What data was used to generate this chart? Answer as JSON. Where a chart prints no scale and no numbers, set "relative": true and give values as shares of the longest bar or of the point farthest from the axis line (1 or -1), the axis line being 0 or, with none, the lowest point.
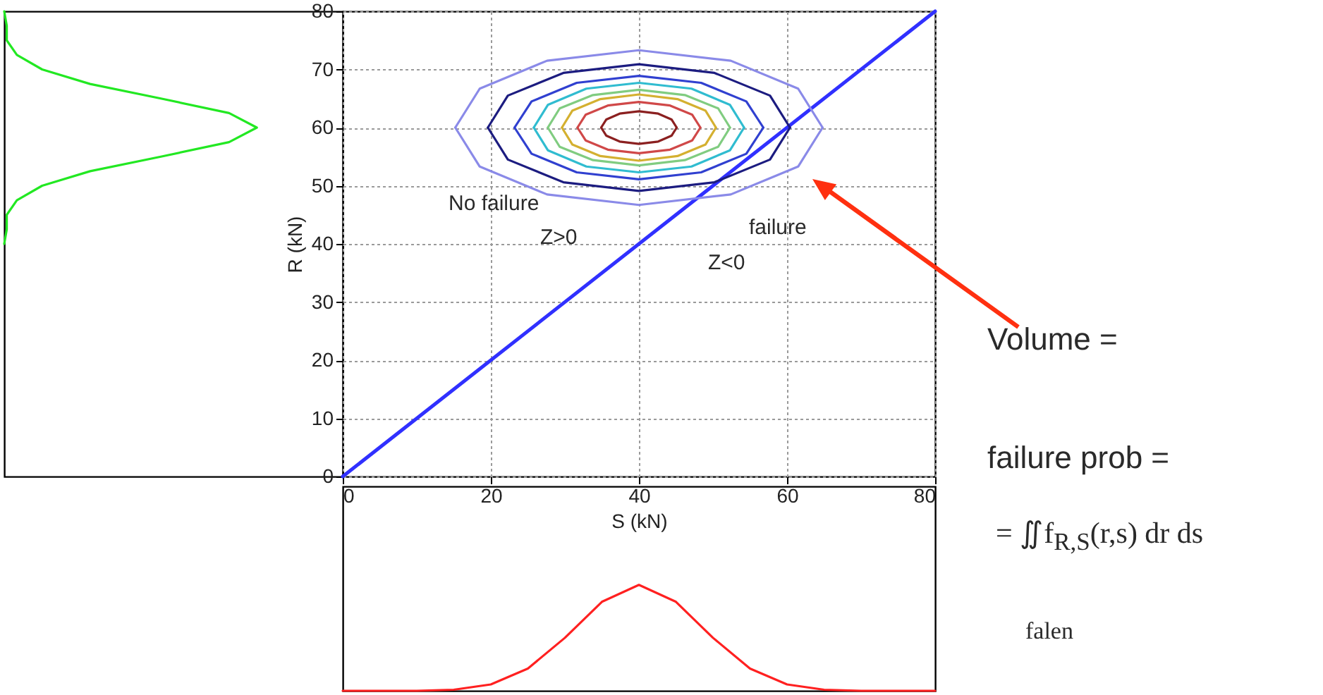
{
  "chart_data": [
    {
      "type": "line",
      "orientation": "horizontal",
      "relative": true,
      "ylim": [
        0,
        80
      ],
      "tick_labels": false,
      "color": "#22e822",
      "x": [
        40,
        42.5,
        45,
        47.5,
        50,
        52.5,
        55,
        57.5,
        60,
        62.5,
        65,
        67.5,
        70,
        72.5,
        75,
        77.5,
        80
      ],
      "values": [
        0,
        0.01,
        0.01,
        0.05,
        0.15,
        0.34,
        0.62,
        0.89,
        1,
        0.89,
        0.62,
        0.34,
        0.15,
        0.05,
        0.01,
        0.01,
        0
      ]
    },
    {
      "type": "line",
      "xlim": [
        0,
        80
      ],
      "ylim": [
        0,
        80
      ],
      "xticks": [
        0,
        20,
        40,
        60,
        80
      ],
      "yticks": [
        0,
        10,
        20,
        30,
        40,
        50,
        60,
        70,
        80
      ],
      "xlabel": "S (kN)",
      "ylabel": "R (kN)",
      "grid": true,
      "series": [
        {
          "color": "#3030ff",
          "x": [
            0,
            80
          ],
          "values": [
            0,
            80
          ]
        },
        {
          "color": "#8a8ae8",
          "x": [
            15.2,
            18.5,
            27.6,
            40,
            52.4,
            61.5,
            64.8
          ],
          "values": [
            60,
            66.7,
            71.5,
            73.3,
            71.5,
            66.7,
            60
          ]
        },
        {
          "color": "#8a8ae8",
          "x": [
            15.2,
            18.5,
            27.6,
            40,
            52.4,
            61.5,
            64.8
          ],
          "values": [
            60,
            53.3,
            48.5,
            46.7,
            48.5,
            53.3,
            60
          ]
        },
        {
          "color": "#1c1c80",
          "x": [
            19.6,
            22.3,
            29.8,
            40,
            50.2,
            57.7,
            60.4
          ],
          "values": [
            60,
            65.5,
            69.4,
            70.9,
            69.4,
            65.5,
            60
          ]
        },
        {
          "color": "#1c1c80",
          "x": [
            19.6,
            22.3,
            29.8,
            40,
            50.2,
            57.7,
            60.4
          ],
          "values": [
            60,
            54.5,
            50.6,
            49.1,
            50.6,
            54.5,
            60
          ]
        },
        {
          "color": "#3040d0",
          "x": [
            23.2,
            25.5,
            31.6,
            40,
            48.4,
            54.5,
            56.8
          ],
          "values": [
            60,
            64.5,
            67.7,
            68.9,
            67.7,
            64.5,
            60
          ]
        },
        {
          "color": "#3040d0",
          "x": [
            23.2,
            25.5,
            31.6,
            40,
            48.4,
            54.5,
            56.8
          ],
          "values": [
            60,
            55.5,
            52.3,
            51.1,
            52.3,
            55.5,
            60
          ]
        },
        {
          "color": "#30bcd0",
          "x": [
            25.8,
            27.7,
            32.9,
            40,
            47.1,
            52.3,
            54.2
          ],
          "values": [
            60,
            63.9,
            66.7,
            67.7,
            66.7,
            63.9,
            60
          ]
        },
        {
          "color": "#30bcd0",
          "x": [
            25.8,
            27.7,
            32.9,
            40,
            47.1,
            52.3,
            54.2
          ],
          "values": [
            60,
            56.1,
            53.3,
            52.3,
            53.3,
            56.1,
            60
          ]
        },
        {
          "color": "#80cc80",
          "x": [
            27.7,
            29.3,
            33.8,
            40,
            46.2,
            50.7,
            52.3
          ],
          "values": [
            60,
            63.3,
            65.6,
            66.5,
            65.6,
            63.3,
            60
          ]
        },
        {
          "color": "#80cc80",
          "x": [
            27.7,
            29.3,
            33.8,
            40,
            46.2,
            50.7,
            52.3
          ],
          "values": [
            60,
            56.7,
            54.4,
            53.5,
            54.4,
            56.7,
            60
          ]
        },
        {
          "color": "#d4b030",
          "x": [
            29.6,
            31,
            34.8,
            40,
            45.2,
            49,
            50.4
          ],
          "values": [
            60,
            62.9,
            64.9,
            65.7,
            64.9,
            62.9,
            60
          ]
        },
        {
          "color": "#d4b030",
          "x": [
            29.6,
            31,
            34.8,
            40,
            45.2,
            49,
            50.4
          ],
          "values": [
            60,
            57.1,
            55.1,
            54.3,
            55.1,
            57.1,
            60
          ]
        },
        {
          "color": "#d04848",
          "x": [
            31.7,
            32.8,
            35.8,
            40,
            44.2,
            47.2,
            48.3
          ],
          "values": [
            60,
            62.2,
            63.8,
            64.4,
            63.8,
            62.2,
            60
          ]
        },
        {
          "color": "#d04848",
          "x": [
            31.7,
            32.8,
            35.8,
            40,
            44.2,
            47.2,
            48.3
          ],
          "values": [
            60,
            57.8,
            56.2,
            55.6,
            56.2,
            57.8,
            60
          ]
        },
        {
          "color": "#8b2020",
          "x": [
            34.9,
            35.6,
            37.4,
            40,
            42.6,
            44.4,
            45.1
          ],
          "values": [
            60,
            61.4,
            62.4,
            62.8,
            62.4,
            61.4,
            60
          ]
        },
        {
          "color": "#8b2020",
          "x": [
            34.9,
            35.6,
            37.4,
            40,
            42.6,
            44.4,
            45.1
          ],
          "values": [
            60,
            58.6,
            57.6,
            57.2,
            57.6,
            58.6,
            60
          ]
        }
      ],
      "annotations": [
        "No failure",
        "Z>0",
        "failure",
        "Z<0",
        "Volume =",
        "failure prob =",
        "= ∬f$_{R,S}$(r,s) dr ds",
        "falen"
      ]
    },
    {
      "type": "line",
      "relative": true,
      "xlim": [
        0,
        80
      ],
      "tick_labels": false,
      "color": "#ff2020",
      "x": [
        0,
        5,
        10,
        15,
        20,
        25,
        30,
        35,
        40,
        45,
        50,
        55,
        60,
        65,
        70,
        75,
        80
      ],
      "values": [
        0,
        0,
        0,
        0.01,
        0.06,
        0.21,
        0.5,
        0.84,
        1,
        0.84,
        0.5,
        0.21,
        0.06,
        0.01,
        0,
        0,
        0
      ]
    }
  ]
}
